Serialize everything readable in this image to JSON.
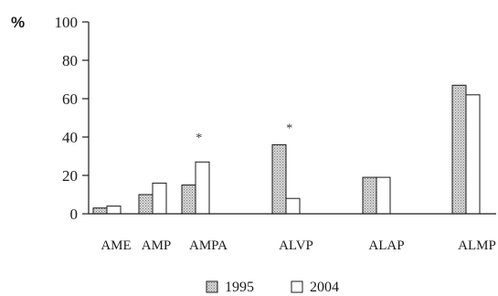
{
  "chart_data": {
    "type": "bar",
    "y_unit": "%",
    "ylim": [
      0,
      100
    ],
    "yticks": [
      "0",
      "20",
      "40",
      "60",
      "80",
      "100"
    ],
    "ytick_values": [
      0,
      20,
      40,
      60,
      80,
      100
    ],
    "categories": [
      "AME",
      "AMP",
      "AMPA",
      "ALVP",
      "ALAP",
      "ALMP"
    ],
    "series": [
      {
        "name": "1995",
        "values": [
          3,
          10,
          15,
          36,
          19,
          67
        ],
        "fill": "dotted-gray"
      },
      {
        "name": "2004",
        "values": [
          4,
          16,
          27,
          8,
          19,
          62
        ],
        "fill": "white"
      }
    ],
    "annotations": [
      {
        "text": "*",
        "category": "AMPA",
        "y": 42
      },
      {
        "text": "*",
        "category": "ALVP",
        "y": 47
      }
    ],
    "legend": {
      "placement": "bottom",
      "entries": [
        "1995",
        "2004"
      ]
    },
    "grid": false
  },
  "colors": {
    "axis": "#1a1a1a",
    "bar_1995_base": "#d0d0d0",
    "bar_1995_dots": "#808080",
    "bar_2004": "#ffffff"
  }
}
